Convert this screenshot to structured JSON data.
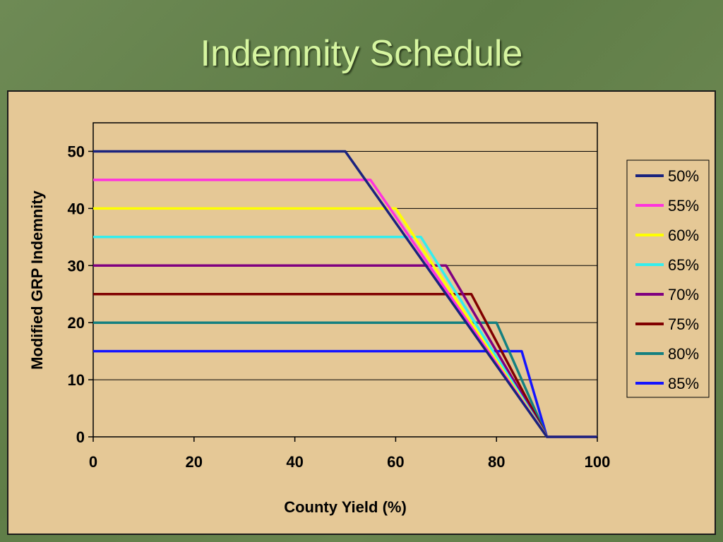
{
  "slide": {
    "title": "Indemnity Schedule"
  },
  "chart_data": {
    "type": "line",
    "title": "",
    "xlabel": "County Yield (%)",
    "ylabel": "Modified GRP Indemnity",
    "xlim": [
      0,
      100
    ],
    "ylim": [
      0,
      55
    ],
    "x_ticks": [
      0,
      20,
      40,
      60,
      80,
      100
    ],
    "y_ticks": [
      0,
      10,
      20,
      30,
      40,
      50
    ],
    "grid": "horizontal",
    "legend_position": "right",
    "series": [
      {
        "name": "50%",
        "color": "#1a237e",
        "points": [
          [
            0,
            50
          ],
          [
            50,
            50
          ],
          [
            90,
            0
          ],
          [
            100,
            0
          ]
        ]
      },
      {
        "name": "55%",
        "color": "#ff33dd",
        "points": [
          [
            0,
            45
          ],
          [
            55,
            45
          ],
          [
            90,
            0
          ],
          [
            100,
            0
          ]
        ]
      },
      {
        "name": "60%",
        "color": "#ffff00",
        "points": [
          [
            0,
            40
          ],
          [
            60,
            40
          ],
          [
            90,
            0
          ],
          [
            100,
            0
          ]
        ]
      },
      {
        "name": "65%",
        "color": "#33eeee",
        "points": [
          [
            0,
            35
          ],
          [
            65,
            35
          ],
          [
            90,
            0
          ],
          [
            100,
            0
          ]
        ]
      },
      {
        "name": "70%",
        "color": "#800080",
        "points": [
          [
            0,
            30
          ],
          [
            70,
            30
          ],
          [
            90,
            0
          ],
          [
            100,
            0
          ]
        ]
      },
      {
        "name": "75%",
        "color": "#800000",
        "points": [
          [
            0,
            25
          ],
          [
            75,
            25
          ],
          [
            90,
            0
          ],
          [
            100,
            0
          ]
        ]
      },
      {
        "name": "80%",
        "color": "#148080",
        "points": [
          [
            0,
            20
          ],
          [
            80,
            20
          ],
          [
            90,
            0
          ],
          [
            100,
            0
          ]
        ]
      },
      {
        "name": "85%",
        "color": "#1414ff",
        "points": [
          [
            0,
            15
          ],
          [
            85,
            15
          ],
          [
            90,
            0
          ],
          [
            100,
            0
          ]
        ]
      }
    ]
  }
}
